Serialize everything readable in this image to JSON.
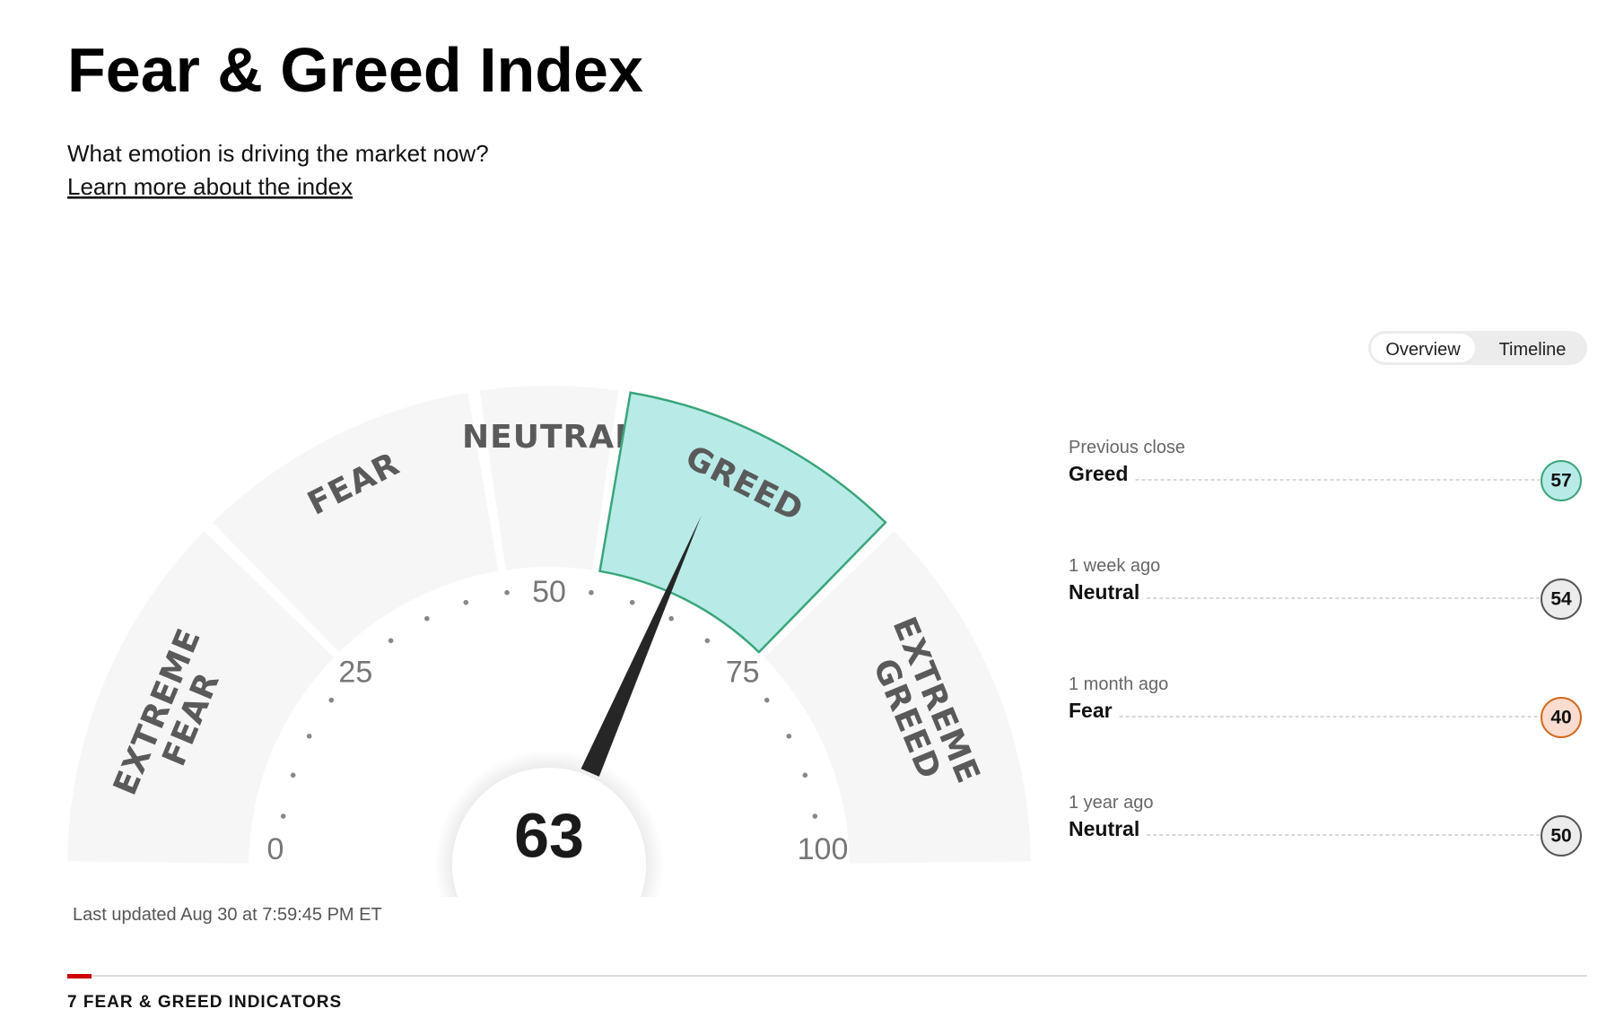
{
  "header": {
    "title": "Fear & Greed Index",
    "subtitle": "What emotion is driving the market now?",
    "link": "Learn more about the index"
  },
  "toggle": {
    "options": [
      "Overview",
      "Timeline"
    ],
    "selected": 0
  },
  "gauge": {
    "range": [
      0,
      100
    ],
    "ticks": [
      0,
      25,
      50,
      75,
      100
    ],
    "value": 63,
    "segments": [
      {
        "label": "EXTREME FEAR",
        "from": 0,
        "to": 25
      },
      {
        "label": "FEAR",
        "from": 25,
        "to": 45
      },
      {
        "label": "NEUTRAL",
        "from": 45,
        "to": 55
      },
      {
        "label": "GREED",
        "from": 55,
        "to": 75
      },
      {
        "label": "EXTREME GREED",
        "from": 75,
        "to": 100
      }
    ]
  },
  "history": [
    {
      "period": "Previous close",
      "rating": "Greed",
      "value": 57
    },
    {
      "period": "1 week ago",
      "rating": "Neutral",
      "value": 54
    },
    {
      "period": "1 month ago",
      "rating": "Fear",
      "value": 40
    },
    {
      "period": "1 year ago",
      "rating": "Neutral",
      "value": 50
    }
  ],
  "rating_colors": {
    "Greed": {
      "fill": "#b8ebe8",
      "stroke": "#3aa57a"
    },
    "Neutral": {
      "fill": "#ececec",
      "stroke": "#555555"
    },
    "Fear": {
      "fill": "#fbdcd0",
      "stroke": "#d2691e"
    }
  },
  "last_updated": "Last updated Aug 30 at 7:59:45 PM ET",
  "section": "7 FEAR & GREED INDICATORS"
}
